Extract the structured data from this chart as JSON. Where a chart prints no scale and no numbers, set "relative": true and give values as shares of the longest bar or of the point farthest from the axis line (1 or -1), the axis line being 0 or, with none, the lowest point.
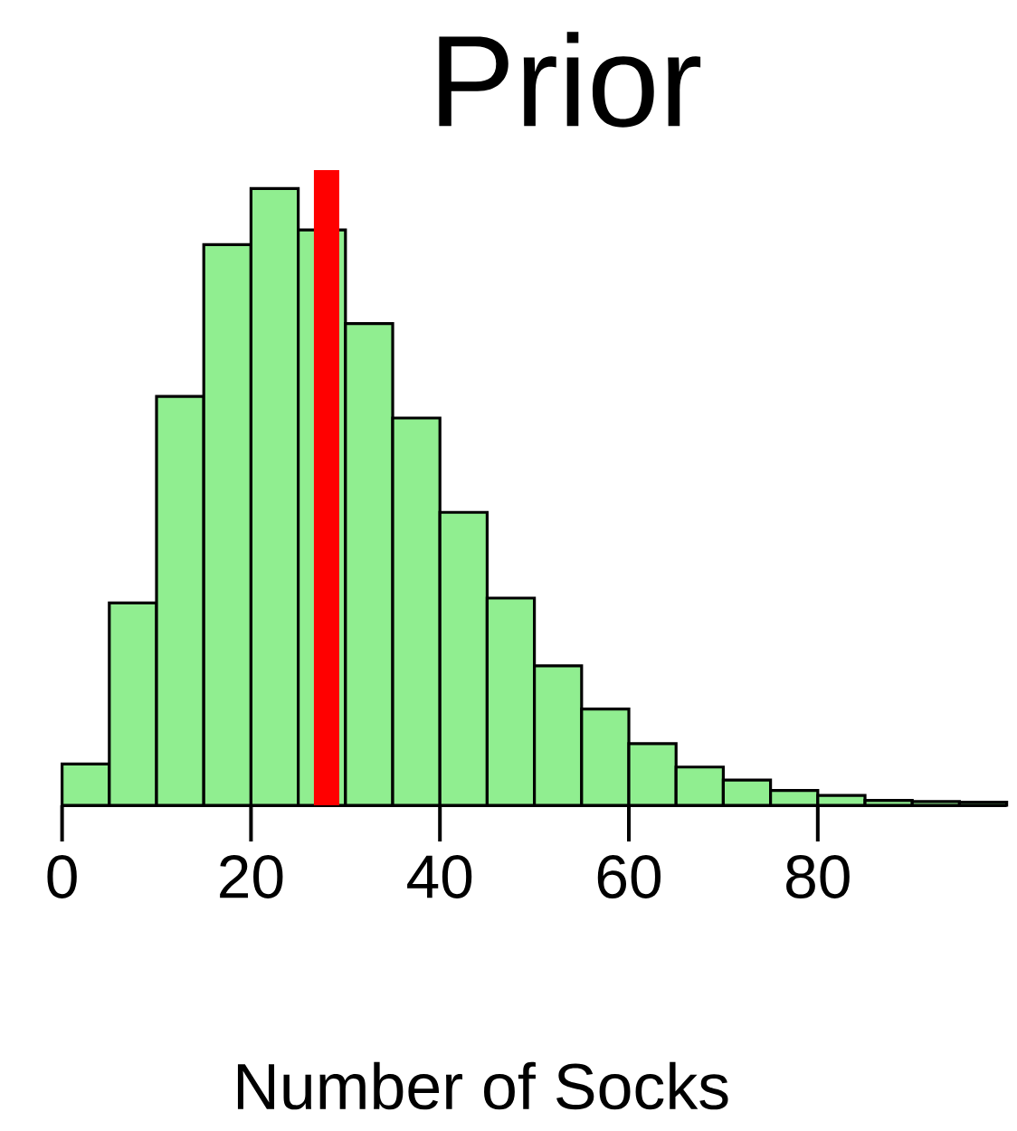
{
  "chart_data": {
    "type": "bar",
    "title": "Prior",
    "xlabel": "Number of Socks",
    "x": [
      2.5,
      7.5,
      12.5,
      17.5,
      22.5,
      27.5,
      32.5,
      37.5,
      42.5,
      47.5,
      52.5,
      57.5,
      62.5,
      67.5,
      72.5,
      77.5,
      82.5,
      87.5,
      92.5,
      97.5
    ],
    "values": [
      0.067,
      0.328,
      0.663,
      0.909,
      1,
      0.933,
      0.781,
      0.628,
      0.475,
      0.336,
      0.226,
      0.156,
      0.1,
      0.062,
      0.041,
      0.024,
      0.016,
      0.008,
      0.006,
      0.005
    ],
    "relative": true,
    "color": "#90ee90",
    "xlim": [
      0,
      100
    ],
    "xticks": [
      0,
      20,
      40,
      60,
      80
    ],
    "ref_lines": [
      {
        "axis": "x",
        "value": 28,
        "color": "#ff0000"
      }
    ]
  }
}
